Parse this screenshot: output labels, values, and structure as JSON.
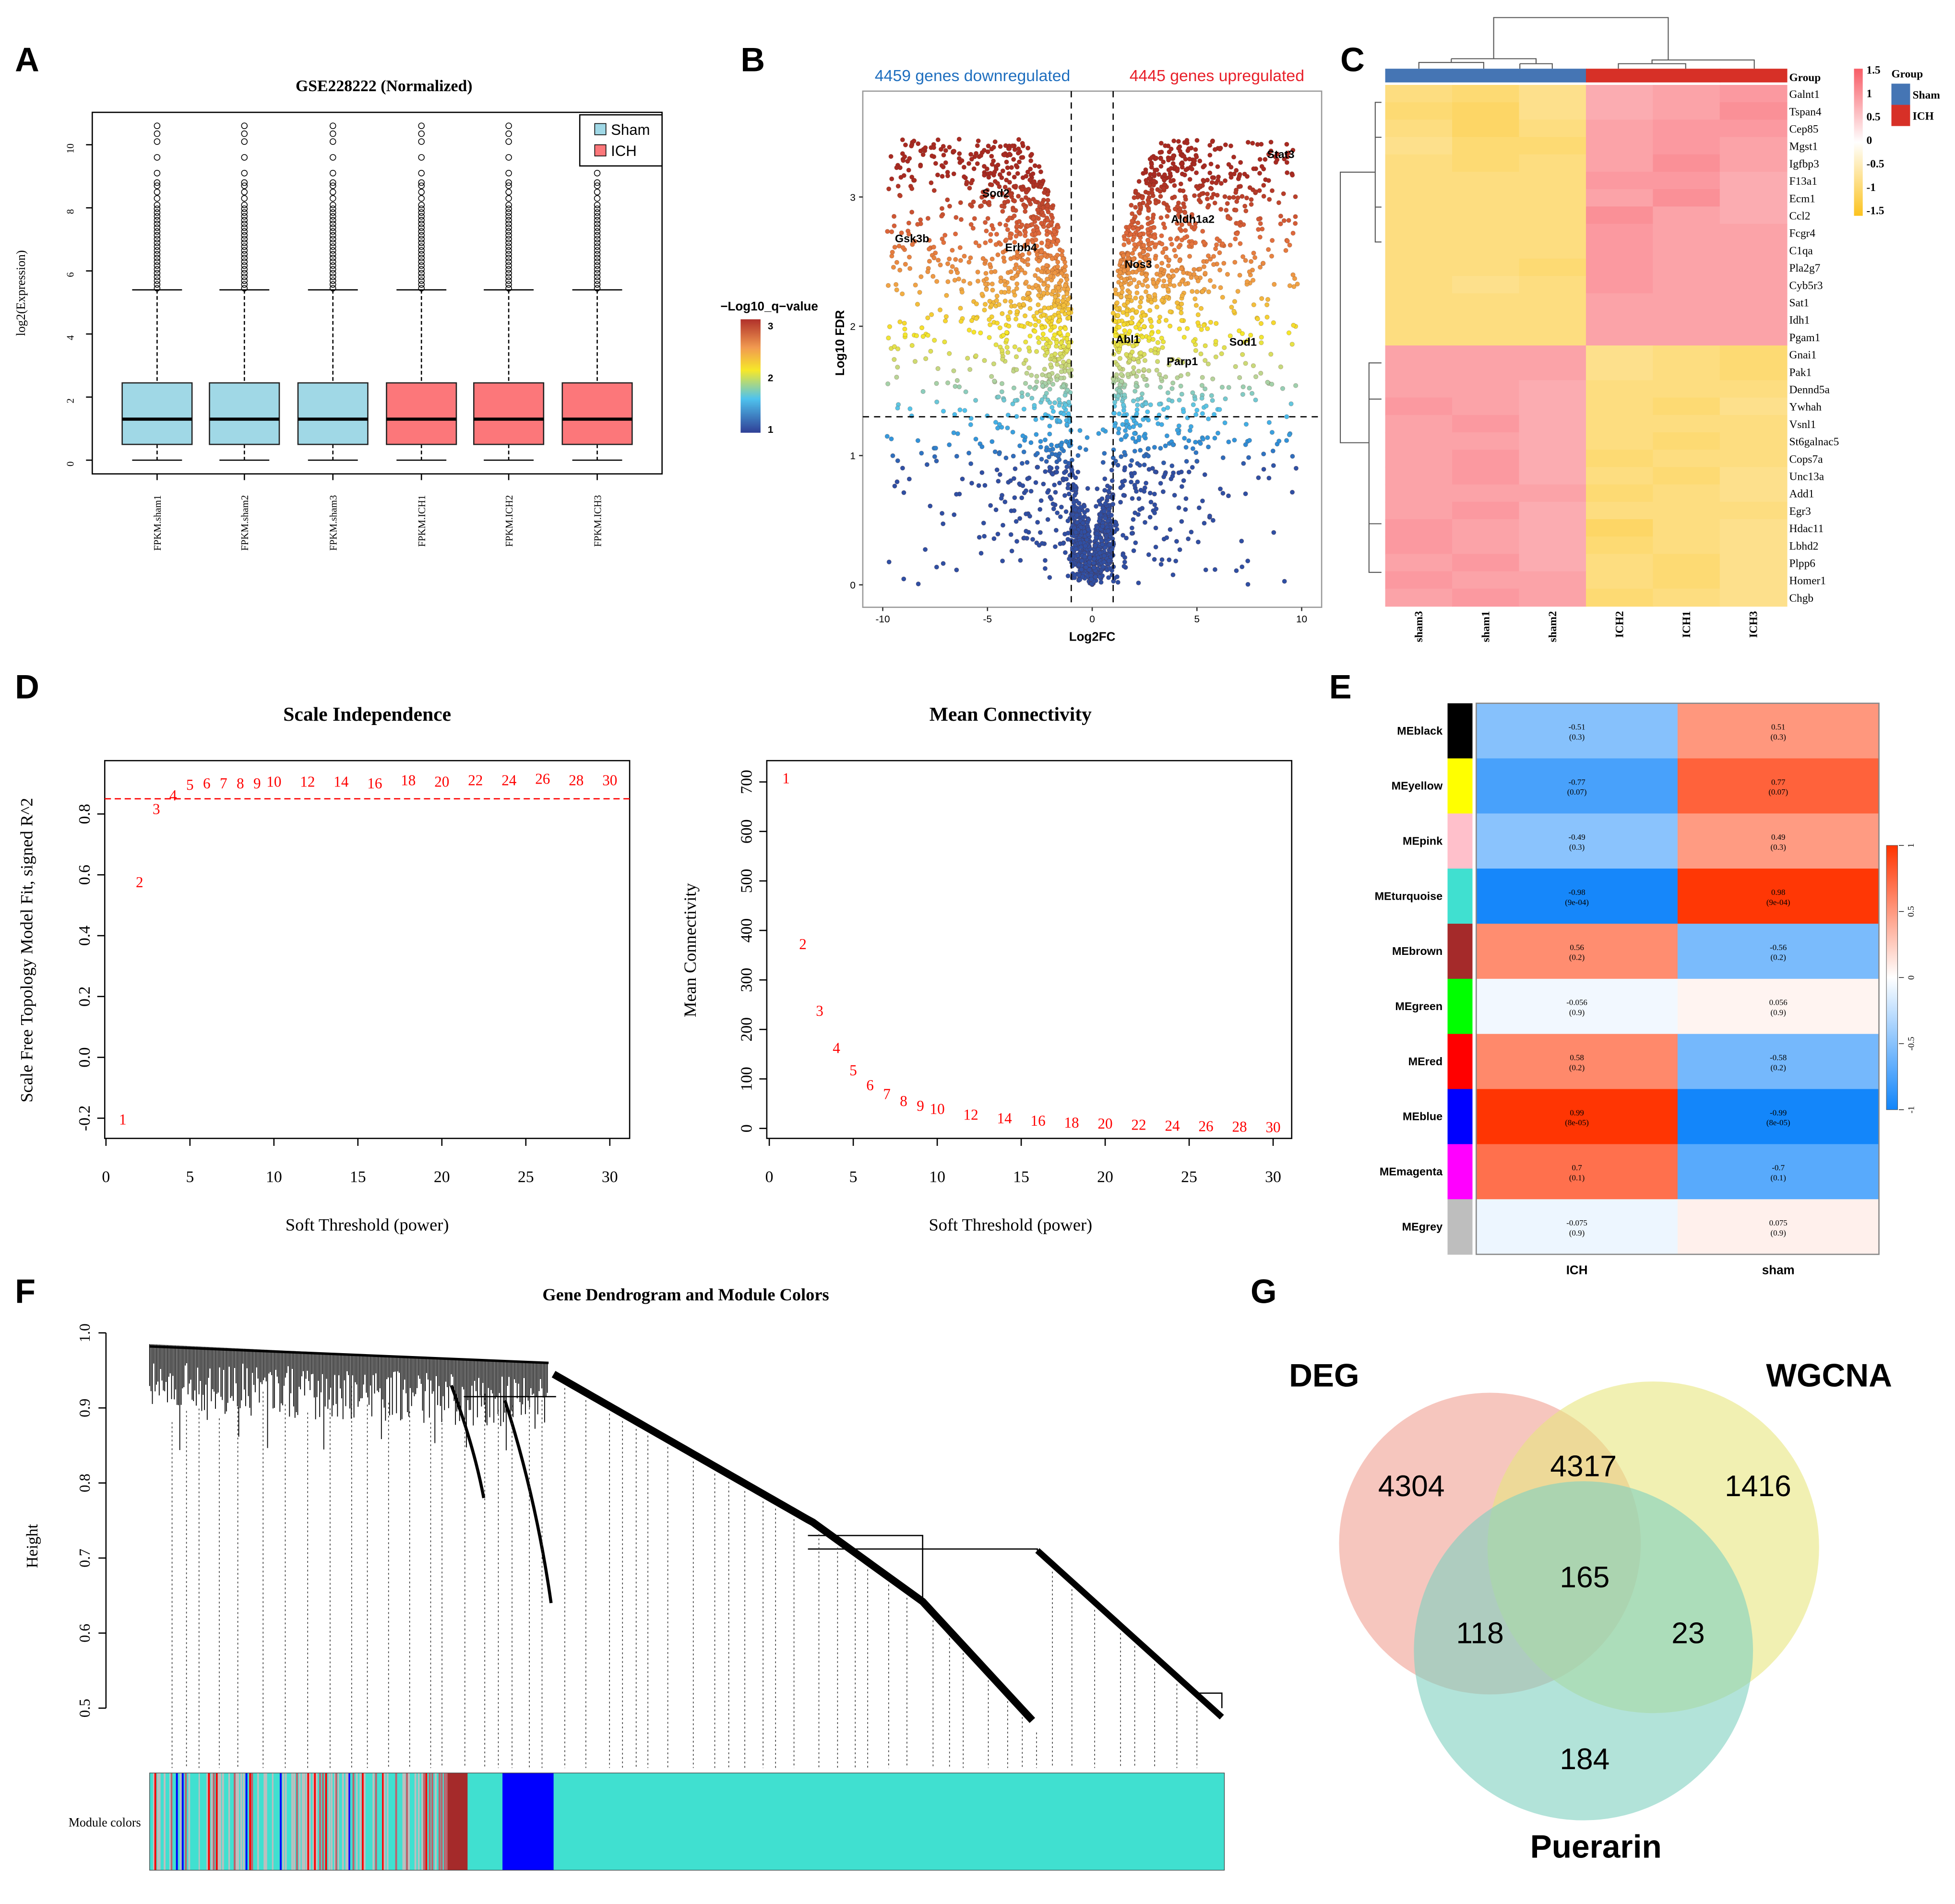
{
  "panels": {
    "A": "A",
    "B": "B",
    "C": "C",
    "D": "D",
    "E": "E",
    "F": "F",
    "G": "G"
  },
  "chart_data": [
    {
      "id": "A",
      "type": "box",
      "title": "GSE228222 (Normalized)",
      "ylabel": "log2(Expression)",
      "ylim": [
        0,
        10.9
      ],
      "yticks": [
        0,
        2,
        4,
        6,
        8,
        10
      ],
      "categories": [
        "FPKM.sham1",
        "FPKM.sham2",
        "FPKM.sham3",
        "FPKM.ICH1",
        "FPKM.ICH2",
        "FPKM.ICH3"
      ],
      "groups": [
        "Sham",
        "Sham",
        "Sham",
        "ICH",
        "ICH",
        "ICH"
      ],
      "legend": [
        {
          "name": "Sham",
          "color": "#a0d8e6"
        },
        {
          "name": "ICH",
          "color": "#fc777a"
        }
      ],
      "legend_position": "top-right",
      "stats": {
        "whisker_low": 0,
        "q1": 0.5,
        "median": 1.3,
        "q3": 2.45,
        "whisker_high": 5.4,
        "outlier_max": 10.6
      }
    },
    {
      "id": "B",
      "type": "scatter",
      "subtitle_down": "4459 genes downregulated",
      "subtitle_up": "4445 genes upregulated",
      "xlabel": "Log2FC",
      "ylabel": "Log10 FDR",
      "xlim": [
        -11,
        11
      ],
      "ylim": [
        -0.15,
        3.7
      ],
      "xticks": [
        -10,
        -5,
        0,
        5,
        10
      ],
      "yticks": [
        0,
        1,
        2,
        3
      ],
      "fc_threshold": 1,
      "fdr_threshold": 1.3,
      "colorbar_title": "−Log10_q−value",
      "colorbar_ticks": [
        1,
        2,
        3
      ],
      "down_count": 4459,
      "up_count": 4445,
      "labels": [
        {
          "gene": "Gsk3b",
          "x": -8.6,
          "y": 2.65
        },
        {
          "gene": "Sod2",
          "x": -4.6,
          "y": 3.0
        },
        {
          "gene": "Erbb4",
          "x": -3.4,
          "y": 2.58
        },
        {
          "gene": "Nos3",
          "x": 2.2,
          "y": 2.45
        },
        {
          "gene": "Abl1",
          "x": 1.7,
          "y": 1.87
        },
        {
          "gene": "Parp1",
          "x": 4.3,
          "y": 1.7
        },
        {
          "gene": "Aldh1a2",
          "x": 4.8,
          "y": 2.8
        },
        {
          "gene": "Sod1",
          "x": 7.2,
          "y": 1.85
        },
        {
          "gene": "Stat3",
          "x": 9.0,
          "y": 3.3
        }
      ]
    },
    {
      "id": "C",
      "type": "heatmap",
      "columns": [
        "sham3",
        "sham1",
        "sham2",
        "ICH2",
        "ICH1",
        "ICH3"
      ],
      "column_groups": [
        "Sham",
        "Sham",
        "Sham",
        "ICH",
        "ICH",
        "ICH"
      ],
      "group_label": "Group",
      "group_legend": [
        {
          "name": "Sham",
          "color": "#4575b4"
        },
        {
          "name": "ICH",
          "color": "#d73027"
        }
      ],
      "colorbar_ticks": [
        "1.5",
        "1",
        "0.5",
        "0",
        "-0.5",
        "-1",
        "-1.5"
      ],
      "rows": [
        "Galnt1",
        "Tspan4",
        "Cep85",
        "Mgst1",
        "Igfbp3",
        "F13a1",
        "Ecm1",
        "Ccl2",
        "Fcgr4",
        "C1qa",
        "Pla2g7",
        "Cyb5r3",
        "Sat1",
        "Idh1",
        "Pgam1",
        "Gnai1",
        "Pak1",
        "Dennd5a",
        "Ywhah",
        "Vsnl1",
        "St6galnac5",
        "Cops7a",
        "Unc13a",
        "Add1",
        "Egr3",
        "Hdac11",
        "Lbhd2",
        "Plpp6",
        "Homer1",
        "Chgb"
      ],
      "values": [
        [
          -1.0,
          -1.1,
          -0.9,
          0.9,
          1.0,
          1.1
        ],
        [
          -1.1,
          -1.2,
          -0.9,
          0.9,
          1.0,
          1.2
        ],
        [
          -1.0,
          -1.2,
          -1.0,
          1.0,
          1.1,
          1.1
        ],
        [
          -0.9,
          -1.1,
          -1.1,
          1.0,
          1.1,
          1.0
        ],
        [
          -1.0,
          -1.1,
          -1.0,
          1.0,
          1.2,
          1.0
        ],
        [
          -1.0,
          -1.0,
          -1.0,
          1.1,
          1.1,
          0.9
        ],
        [
          -1.0,
          -1.0,
          -1.0,
          1.0,
          1.2,
          0.9
        ],
        [
          -1.0,
          -1.0,
          -1.0,
          1.2,
          1.0,
          0.9
        ],
        [
          -1.0,
          -1.0,
          -1.0,
          1.1,
          1.0,
          1.0
        ],
        [
          -1.0,
          -1.0,
          -1.0,
          1.1,
          1.0,
          1.0
        ],
        [
          -1.0,
          -1.0,
          -1.1,
          1.1,
          1.0,
          1.0
        ],
        [
          -1.0,
          -0.9,
          -1.0,
          1.1,
          1.0,
          1.0
        ],
        [
          -1.0,
          -1.0,
          -1.0,
          1.0,
          1.0,
          1.0
        ],
        [
          -1.0,
          -1.0,
          -1.0,
          1.0,
          1.0,
          1.0
        ],
        [
          -1.0,
          -1.0,
          -1.0,
          1.0,
          1.0,
          1.0
        ],
        [
          1.0,
          1.0,
          1.0,
          -0.9,
          -1.0,
          -1.1
        ],
        [
          1.0,
          1.0,
          1.0,
          -0.9,
          -1.0,
          -1.1
        ],
        [
          1.0,
          1.0,
          0.9,
          -1.0,
          -1.0,
          -1.0
        ],
        [
          1.1,
          1.0,
          0.9,
          -1.0,
          -1.1,
          -0.9
        ],
        [
          1.0,
          1.1,
          0.9,
          -1.0,
          -1.0,
          -1.0
        ],
        [
          1.0,
          1.0,
          0.9,
          -1.0,
          -1.1,
          -1.0
        ],
        [
          1.0,
          1.1,
          0.9,
          -1.1,
          -1.0,
          -1.0
        ],
        [
          1.0,
          1.1,
          0.9,
          -1.0,
          -1.1,
          -0.9
        ],
        [
          1.0,
          1.0,
          1.0,
          -1.1,
          -1.0,
          -0.9
        ],
        [
          1.0,
          1.1,
          0.9,
          -1.0,
          -1.0,
          -1.0
        ],
        [
          1.1,
          1.0,
          0.9,
          -1.2,
          -1.0,
          -0.9
        ],
        [
          1.1,
          1.0,
          0.9,
          -1.1,
          -1.0,
          -0.9
        ],
        [
          1.0,
          1.1,
          0.9,
          -1.0,
          -1.1,
          -0.9
        ],
        [
          1.1,
          1.0,
          1.0,
          -1.0,
          -1.1,
          -0.9
        ],
        [
          1.0,
          1.1,
          1.0,
          -1.1,
          -1.0,
          -0.9
        ]
      ]
    },
    {
      "id": "D1",
      "type": "scatter",
      "title": "Scale Independence",
      "xlabel": "Soft Threshold (power)",
      "ylabel": "Scale Free Topology Model Fit, signed R^2",
      "xlim": [
        0,
        31
      ],
      "ylim": [
        -0.25,
        0.95
      ],
      "xticks": [
        0,
        5,
        10,
        15,
        20,
        25,
        30
      ],
      "yticks": [
        -0.2,
        0.0,
        0.2,
        0.4,
        0.6,
        0.8
      ],
      "cutoff": 0.85,
      "x": [
        1,
        2,
        3,
        4,
        5,
        6,
        7,
        8,
        9,
        10,
        12,
        14,
        16,
        18,
        20,
        22,
        24,
        26,
        28,
        30
      ],
      "y": [
        -0.2,
        0.58,
        0.82,
        0.865,
        0.9,
        0.905,
        0.905,
        0.905,
        0.905,
        0.91,
        0.91,
        0.91,
        0.905,
        0.915,
        0.91,
        0.915,
        0.915,
        0.92,
        0.915,
        0.915
      ]
    },
    {
      "id": "D2",
      "type": "scatter",
      "title": "Mean Connectivity",
      "xlabel": "Soft Threshold (power)",
      "ylabel": "Mean Connectivity",
      "xlim": [
        0,
        31
      ],
      "ylim": [
        -20,
        740
      ],
      "xticks": [
        0,
        5,
        10,
        15,
        20,
        25,
        30
      ],
      "yticks": [
        0,
        100,
        200,
        300,
        400,
        500,
        600,
        700
      ],
      "x": [
        1,
        2,
        3,
        4,
        5,
        6,
        7,
        8,
        9,
        10,
        12,
        14,
        16,
        18,
        20,
        22,
        24,
        26,
        28,
        30
      ],
      "y": [
        710,
        375,
        240,
        165,
        120,
        90,
        72,
        58,
        48,
        42,
        30,
        23,
        18,
        14,
        12,
        10,
        8,
        7,
        6,
        5
      ]
    },
    {
      "id": "E",
      "type": "heatmap",
      "columns": [
        "ICH",
        "sham"
      ],
      "rows": [
        "MEblack",
        "MEyellow",
        "MEpink",
        "MEturquoise",
        "MEbrown",
        "MEgreen",
        "MEred",
        "MEblue",
        "MEmagenta",
        "MEgrey"
      ],
      "row_colors": [
        "#000000",
        "#ffff00",
        "#ffc0cb",
        "#40e0d0",
        "#a52a2a",
        "#00ff00",
        "#ff0000",
        "#0000ff",
        "#ff00ff",
        "#bebebe"
      ],
      "correlation": [
        [
          -0.51,
          0.51
        ],
        [
          -0.77,
          0.77
        ],
        [
          -0.49,
          0.49
        ],
        [
          -0.98,
          0.98
        ],
        [
          0.56,
          -0.56
        ],
        [
          -0.056,
          0.056
        ],
        [
          0.58,
          -0.58
        ],
        [
          0.99,
          -0.99
        ],
        [
          0.7,
          -0.7
        ],
        [
          -0.075,
          0.075
        ]
      ],
      "pvalue": [
        [
          "(0.3)",
          "(0.3)"
        ],
        [
          "(0.07)",
          "(0.07)"
        ],
        [
          "(0.3)",
          "(0.3)"
        ],
        [
          "(9e-04)",
          "(9e-04)"
        ],
        [
          "(0.2)",
          "(0.2)"
        ],
        [
          "(0.9)",
          "(0.9)"
        ],
        [
          "(0.2)",
          "(0.2)"
        ],
        [
          "(8e-05)",
          "(8e-05)"
        ],
        [
          "(0.1)",
          "(0.1)"
        ],
        [
          "(0.9)",
          "(0.9)"
        ]
      ],
      "colorbar_ticks": [
        "1",
        "0.5",
        "0",
        "-0.5",
        "-1"
      ],
      "colors": {
        "neg": "#1185fa",
        "mid": "#ffffff",
        "pos": "#ff3300"
      }
    },
    {
      "id": "F",
      "type": "dendrogram",
      "title": "Gene Dendrogram and Module Colors",
      "ylabel": "Height",
      "yticks": [
        "0.5",
        "0.6",
        "0.7",
        "0.8",
        "0.9",
        "1.0"
      ],
      "ylim": [
        0.45,
        1.0
      ],
      "module_label": "Module colors",
      "module_colors": [
        "turquoise",
        "blue",
        "brown",
        "grey",
        "red",
        "yellow"
      ]
    },
    {
      "id": "G",
      "type": "venn",
      "sets": [
        {
          "name": "DEG",
          "color": "#f0a092"
        },
        {
          "name": "WGCNA",
          "color": "#e8e67e"
        },
        {
          "name": "Puerarin",
          "color": "#7fd0bf"
        }
      ],
      "regions": {
        "DEG_only": 4304,
        "DEG_WGCNA": 4317,
        "WGCNA_only": 1416,
        "all": 165,
        "DEG_Puerarin": 118,
        "WGCNA_Puerarin": 23,
        "Puerarin_only": 184
      }
    }
  ]
}
